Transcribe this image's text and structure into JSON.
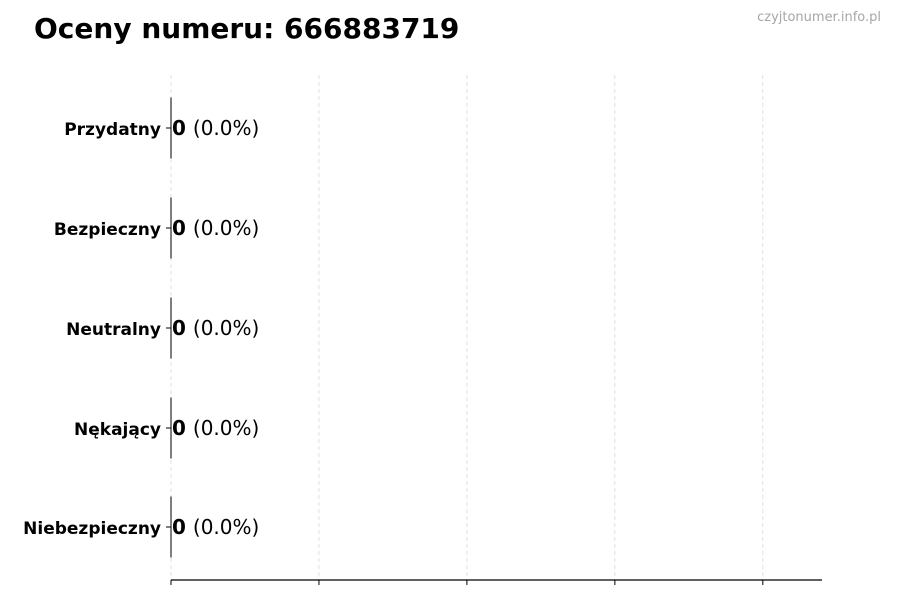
{
  "chart_data": {
    "type": "bar",
    "orientation": "horizontal",
    "title": "Oceny numeru: 666883719",
    "watermark": "czyjtonumer.info.pl",
    "categories": [
      "Przydatny",
      "Bezpieczny",
      "Neutralny",
      "Nękający",
      "Niebezpieczny"
    ],
    "values": [
      0,
      0,
      0,
      0,
      0
    ],
    "labels": [
      {
        "count": "0",
        "pct": "(0.0%)"
      },
      {
        "count": "0",
        "pct": "(0.0%)"
      },
      {
        "count": "0",
        "pct": "(0.0%)"
      },
      {
        "count": "0",
        "pct": "(0.0%)"
      },
      {
        "count": "0",
        "pct": "(0.0%)"
      }
    ],
    "xlabel": "",
    "ylabel": "",
    "xlim": [
      0,
      4.4
    ],
    "xticks": [
      0,
      1,
      2,
      3,
      4
    ],
    "xtick_labels_shown": false,
    "grid": "x dashed",
    "colors": {
      "grid": "#d9d9d9",
      "axis": "#000000",
      "watermark": "#a6a6a6"
    }
  }
}
